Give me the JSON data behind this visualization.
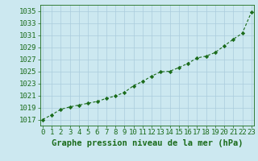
{
  "x": [
    0,
    1,
    2,
    3,
    4,
    5,
    6,
    7,
    8,
    9,
    10,
    11,
    12,
    13,
    14,
    15,
    16,
    17,
    18,
    19,
    20,
    21,
    22,
    23
  ],
  "y": [
    1017.0,
    1017.8,
    1018.7,
    1019.1,
    1019.4,
    1019.7,
    1020.0,
    1020.5,
    1020.9,
    1021.5,
    1022.6,
    1023.3,
    1024.2,
    1024.9,
    1025.0,
    1025.6,
    1026.3,
    1027.2,
    1027.5,
    1028.1,
    1029.2,
    1030.3,
    1031.3,
    1034.8
  ],
  "line_color": "#1a6b1a",
  "bg_color": "#cce8f0",
  "grid_color": "#aaccdd",
  "xlabel": "Graphe pression niveau de la mer (hPa)",
  "ylim_min": 1016.0,
  "ylim_max": 1036.0,
  "xlim_min": -0.3,
  "xlim_max": 23.3,
  "font_color": "#1a6b1a",
  "font_size": 6.5,
  "xlabel_fontsize": 7.5,
  "xtick_labels": [
    "0",
    "1",
    "2",
    "3",
    "4",
    "5",
    "6",
    "7",
    "8",
    "9",
    "10",
    "11",
    "12",
    "13",
    "14",
    "15",
    "16",
    "17",
    "18",
    "19",
    "20",
    "21",
    "22",
    "23"
  ]
}
